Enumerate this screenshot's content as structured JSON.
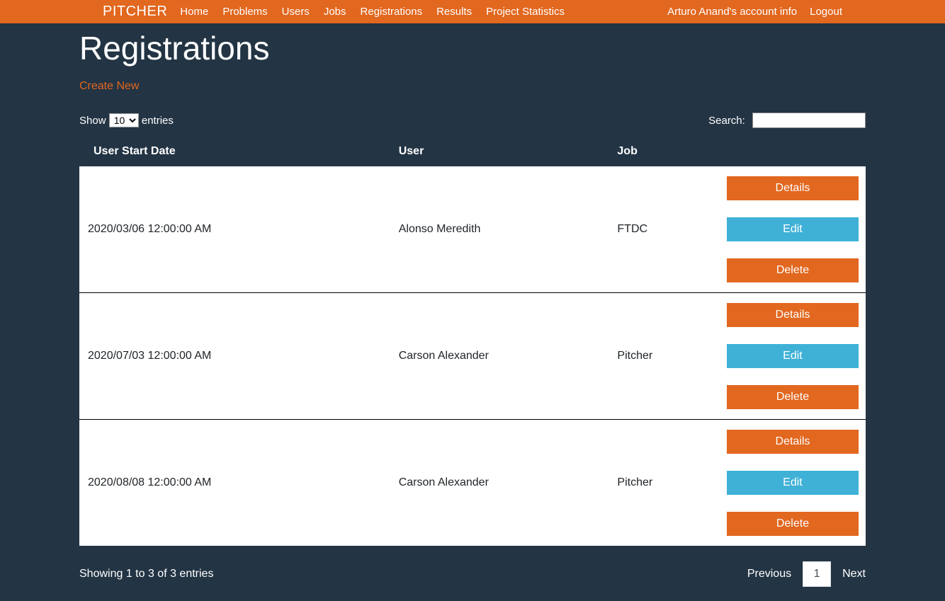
{
  "brand": "PITCHER",
  "nav": {
    "items": [
      "Home",
      "Problems",
      "Users",
      "Jobs",
      "Registrations",
      "Results",
      "Project Statistics"
    ],
    "account_info": "Arturo Anand's account info",
    "logout": "Logout"
  },
  "page": {
    "title": "Registrations",
    "create_new": "Create New"
  },
  "table_controls": {
    "show_label_prefix": "Show ",
    "show_label_suffix": " entries",
    "entries_value": "10",
    "search_label": "Search:"
  },
  "table": {
    "headers": [
      "User Start Date",
      "User",
      "Job",
      ""
    ],
    "rows": [
      {
        "date": "2020/03/06 12:00:00 AM",
        "user": "Alonso Meredith",
        "job": "FTDC"
      },
      {
        "date": "2020/07/03 12:00:00 AM",
        "user": "Carson Alexander",
        "job": "Pitcher"
      },
      {
        "date": "2020/08/08 12:00:00 AM",
        "user": "Carson Alexander",
        "job": "Pitcher"
      }
    ],
    "actions": {
      "details": "Details",
      "edit": "Edit",
      "delete": "Delete"
    }
  },
  "footer": {
    "info": "Showing 1 to 3 of 3 entries",
    "previous": "Previous",
    "next": "Next",
    "current_page": "1"
  },
  "colors": {
    "navbar_bg": "#e2671f",
    "body_bg": "#233444",
    "row_bg": "#ffffff",
    "btn_orange": "#e2671f",
    "btn_blue": "#3fb1d6"
  }
}
